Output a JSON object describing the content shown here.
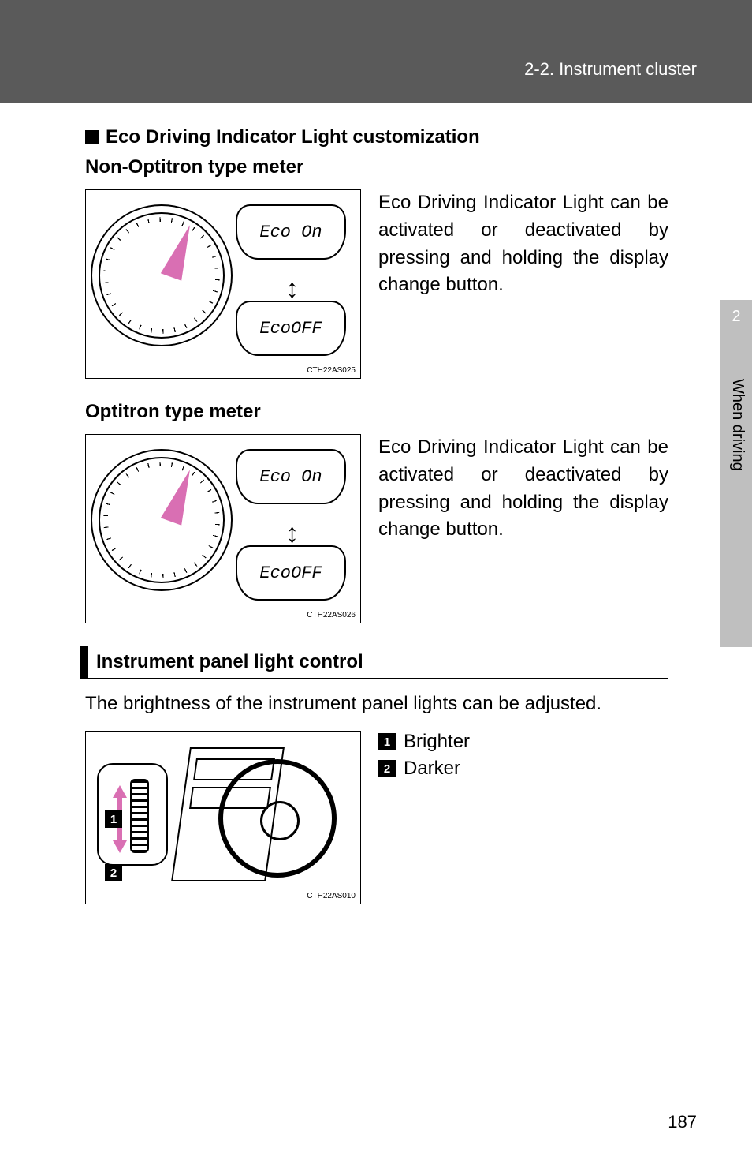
{
  "header": {
    "section": "2-2. Instrument cluster"
  },
  "side_tab": {
    "chapter_number": "2",
    "chapter_label": "When driving"
  },
  "sections": {
    "eco": {
      "heading": "Eco Driving Indicator Light customization",
      "non_optitron": {
        "label": "Non-Optitron type meter",
        "bubble_on": "Eco On",
        "bubble_off": "EcoOFF",
        "figure_code": "CTH22AS025",
        "paragraph": "Eco Driving Indicator Light can be activated or deactivated by pressing and holding the display change button."
      },
      "optitron": {
        "label": "Optitron type meter",
        "bubble_on": "Eco On",
        "bubble_off": "EcoOFF",
        "figure_code": "CTH22AS026",
        "paragraph": "Eco Driving Indicator Light can be activated or deactivated by pressing and holding the display change button."
      }
    },
    "light_control": {
      "heading": "Instrument panel light control",
      "intro": "The brightness of the instrument panel lights can be adjusted.",
      "figure_code": "CTH22AS010",
      "callouts": {
        "1": "Brighter",
        "2": "Darker"
      },
      "badge1": "1",
      "badge2": "2"
    }
  },
  "page_number": "187",
  "colors": {
    "header_band": "#5a5a5a",
    "side_tab": "#bfbfbf",
    "accent_arrow": "#d96fb3"
  }
}
